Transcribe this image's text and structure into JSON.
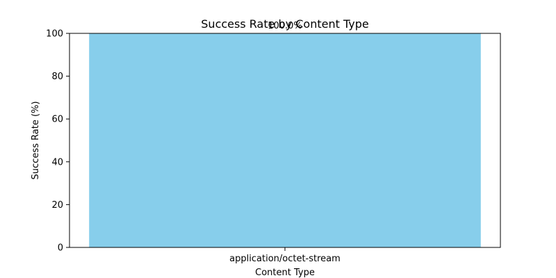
{
  "chart_data": {
    "type": "bar",
    "title": "Success Rate by Content Type",
    "xlabel": "Content Type",
    "ylabel": "Success Rate (%)",
    "categories": [
      "application/octet-stream"
    ],
    "values": [
      100.0
    ],
    "data_labels": [
      "100.0%"
    ],
    "ylim": [
      0,
      100
    ],
    "yticks": [
      0,
      20,
      40,
      60,
      80,
      100
    ],
    "grid": false,
    "bar_color": "#87CEEB"
  }
}
